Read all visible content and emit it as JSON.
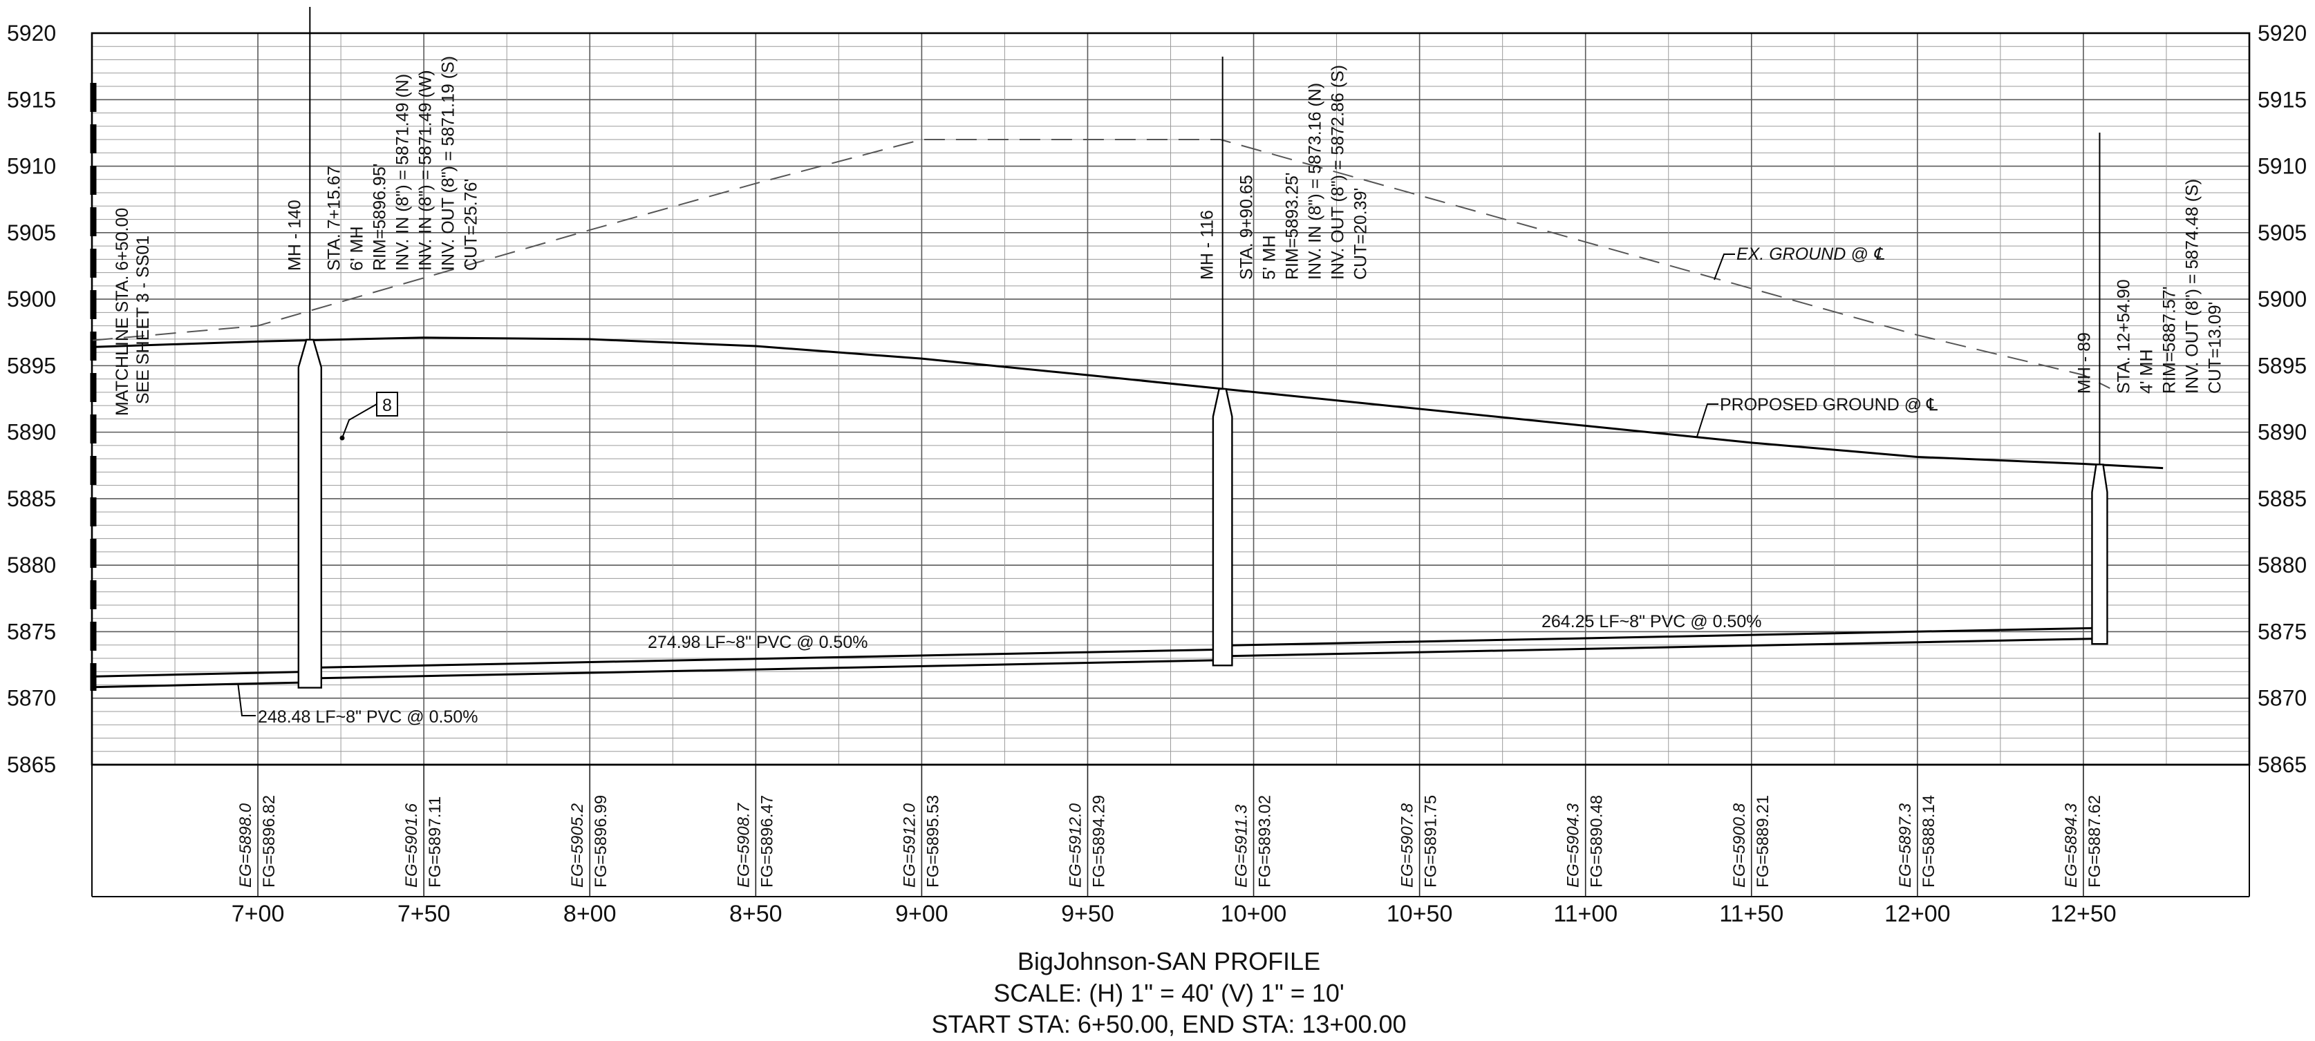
{
  "profile": {
    "elev_min": 5865,
    "elev_max": 5920,
    "elev_ticks": [
      5920,
      5915,
      5910,
      5905,
      5900,
      5895,
      5890,
      5885,
      5880,
      5875,
      5870,
      5865
    ],
    "station_min": 650,
    "station_max": 1300,
    "station_ticks": [
      {
        "sta": 700,
        "label": "7+00"
      },
      {
        "sta": 750,
        "label": "7+50"
      },
      {
        "sta": 800,
        "label": "8+00"
      },
      {
        "sta": 850,
        "label": "8+50"
      },
      {
        "sta": 900,
        "label": "9+00"
      },
      {
        "sta": 950,
        "label": "9+50"
      },
      {
        "sta": 1000,
        "label": "10+00"
      },
      {
        "sta": 1050,
        "label": "10+50"
      },
      {
        "sta": 1100,
        "label": "11+00"
      },
      {
        "sta": 1150,
        "label": "11+50"
      },
      {
        "sta": 1200,
        "label": "12+00"
      },
      {
        "sta": 1250,
        "label": "12+50"
      }
    ],
    "grade_labels": [
      {
        "sta": 700,
        "eg": "EG=5898.0",
        "fg": "FG=5896.82"
      },
      {
        "sta": 750,
        "eg": "EG=5901.6",
        "fg": "FG=5897.11"
      },
      {
        "sta": 800,
        "eg": "EG=5905.2",
        "fg": "FG=5896.99"
      },
      {
        "sta": 850,
        "eg": "EG=5908.7",
        "fg": "FG=5896.47"
      },
      {
        "sta": 900,
        "eg": "EG=5912.0",
        "fg": "FG=5895.53"
      },
      {
        "sta": 950,
        "eg": "EG=5912.0",
        "fg": "FG=5894.29"
      },
      {
        "sta": 1000,
        "eg": "EG=5911.3",
        "fg": "FG=5893.02"
      },
      {
        "sta": 1050,
        "eg": "EG=5907.8",
        "fg": "FG=5891.75"
      },
      {
        "sta": 1100,
        "eg": "EG=5904.3",
        "fg": "FG=5890.48"
      },
      {
        "sta": 1150,
        "eg": "EG=5900.8",
        "fg": "FG=5889.21"
      },
      {
        "sta": 1200,
        "eg": "EG=5897.3",
        "fg": "FG=5888.14"
      },
      {
        "sta": 1250,
        "eg": "EG=5894.3",
        "fg": "FG=5887.62"
      }
    ],
    "existing_ground": [
      [
        650,
        5896.9
      ],
      [
        700,
        5898.0
      ],
      [
        750,
        5901.6
      ],
      [
        800,
        5905.2
      ],
      [
        850,
        5908.7
      ],
      [
        900,
        5912.0
      ],
      [
        950,
        5912.0
      ],
      [
        990,
        5912.0
      ],
      [
        1000,
        5911.3
      ],
      [
        1050,
        5907.8
      ],
      [
        1100,
        5904.3
      ],
      [
        1150,
        5900.8
      ],
      [
        1200,
        5897.3
      ],
      [
        1250,
        5894.3
      ],
      [
        1258,
        5893.3
      ]
    ],
    "proposed_ground": [
      [
        650,
        5896.4
      ],
      [
        700,
        5896.82
      ],
      [
        750,
        5897.11
      ],
      [
        800,
        5896.99
      ],
      [
        850,
        5896.47
      ],
      [
        900,
        5895.53
      ],
      [
        950,
        5894.29
      ],
      [
        1000,
        5893.02
      ],
      [
        1050,
        5891.75
      ],
      [
        1100,
        5890.48
      ],
      [
        1150,
        5889.21
      ],
      [
        1200,
        5888.14
      ],
      [
        1250,
        5887.62
      ],
      [
        1274,
        5887.3
      ]
    ],
    "pipes": [
      {
        "from_sta": 650,
        "to_sta": 715.67,
        "inv_from": 5870.83,
        "inv_to": 5871.19,
        "label": "248.48 LF~8\" PVC @ 0.50%"
      },
      {
        "from_sta": 715.67,
        "to_sta": 990.65,
        "inv_from": 5871.49,
        "inv_to": 5872.86,
        "label": "274.98 LF~8\" PVC @ 0.50%"
      },
      {
        "from_sta": 990.65,
        "to_sta": 1254.9,
        "inv_from": 5873.16,
        "inv_to": 5874.48,
        "label": "264.25 LF~8\" PVC @ 0.50%"
      }
    ],
    "manholes": [
      {
        "name": "MH - 140",
        "sta": 715.67,
        "rim": 5896.95,
        "inv": 5871.19,
        "diam_ft": 6,
        "lines": [
          "MH - 140",
          "STA. 7+15.67",
          "6' MH",
          "RIM=5896.95'",
          "INV. IN (8\") = 5871.49 (N)",
          "INV. IN (8\") = 5871.49 (W)",
          "INV. OUT (8\") = 5871.19 (S)",
          "CUT=25.76'"
        ]
      },
      {
        "name": "MH - 116",
        "sta": 990.65,
        "rim": 5893.25,
        "inv": 5872.86,
        "diam_ft": 5,
        "lines": [
          "MH - 116",
          "STA. 9+90.65",
          "5' MH",
          "RIM=5893.25'",
          "INV. IN (8\") = 5873.16 (N)",
          "INV. OUT (8\") = 5872.86 (S)",
          "CUT=20.39'"
        ]
      },
      {
        "name": "MH - 89",
        "sta": 1254.9,
        "rim": 5887.57,
        "inv": 5874.48,
        "diam_ft": 4,
        "lines": [
          "MH - 89",
          "STA. 12+54.90",
          "4' MH",
          "RIM=5887.57'",
          "INV. OUT (8\") = 5874.48 (S)",
          "CUT=13.09'"
        ]
      }
    ],
    "callouts": {
      "ex_ground": "EX. GROUND @ ℄",
      "proposed_ground": "PROPOSED GROUND @ ℄",
      "matchline": [
        "MATCHLINE STA. 6+50.00",
        "SEE SHEET 3 - SS01"
      ],
      "keynote": "8"
    },
    "title_lines": [
      "BigJohnson-SAN PROFILE",
      "SCALE: (H) 1\" = 40' (V) 1\" = 10'",
      "START STA: 6+50.00, END STA: 13+00.00"
    ]
  }
}
